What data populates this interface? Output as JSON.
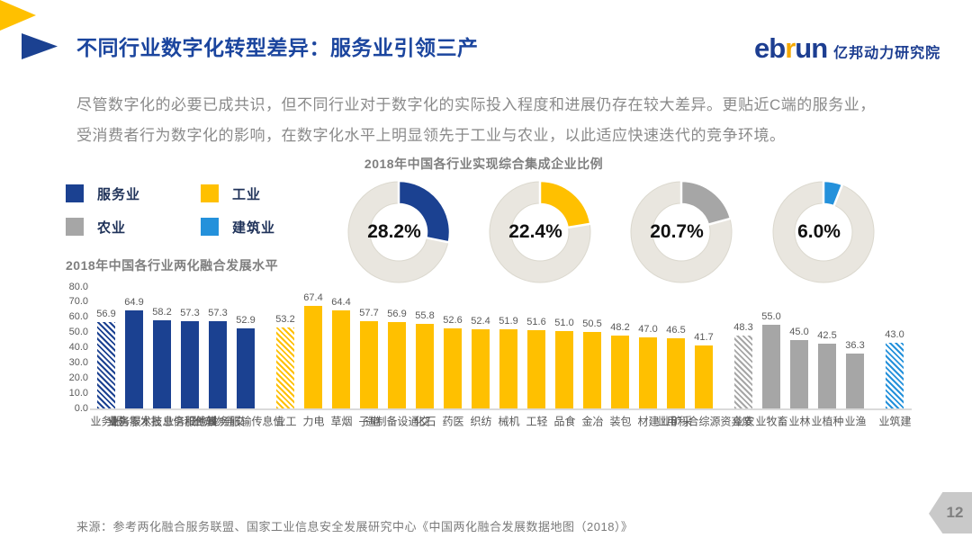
{
  "header": {
    "title": "不同行业数字化转型差异：服务业引领三产",
    "logo": {
      "eb": "eb",
      "r": "r",
      "un": "un",
      "cn": "亿邦动力研究院"
    }
  },
  "intro": {
    "line1": "尽管数字化的必要已成共识，但不同行业对于数字化的实际投入程度和进展仍存在较大差异。更贴近C端的服务业，",
    "line2": "受消费者行为数字化的影响，在数字化水平上明显领先于工业与农业，以此适应快速迭代的竞争环境。"
  },
  "legend": {
    "items": [
      {
        "label": "服务业",
        "color": "#1B4191"
      },
      {
        "label": "工业",
        "color": "#FFC000"
      },
      {
        "label": "农业",
        "color": "#A6A6A6"
      },
      {
        "label": "建筑业",
        "color": "#2491DB"
      }
    ]
  },
  "chart_data": [
    {
      "type": "pie",
      "style": "donut",
      "title": "2018年中国各行业实现综合集成企业比例",
      "track_color": "#E9E6DF",
      "track_border": "#DBD8CE",
      "donuts": [
        {
          "category": "服务业",
          "value": 28.2,
          "color": "#1B4191"
        },
        {
          "category": "工业",
          "value": 22.4,
          "color": "#FFC000"
        },
        {
          "category": "农业",
          "value": 20.7,
          "color": "#A6A6A6"
        },
        {
          "category": "建筑业",
          "value": 6.0,
          "color": "#2491DB"
        }
      ]
    },
    {
      "type": "bar",
      "title": "2018年中国各行业两化融合发展水平",
      "ylim": [
        0,
        80
      ],
      "ytick_step": 10,
      "grid": false,
      "groups": [
        {
          "category": "服务业",
          "color": "#1B4191",
          "bars": [
            {
              "label": "服务业",
              "value": 56.9,
              "hatched": true
            },
            {
              "label": "批发零售业",
              "value": 64.9
            },
            {
              "label": "软件和信息技术服务业",
              "value": 58.2
            },
            {
              "label": "其他服务业",
              "value": 57.3
            },
            {
              "label": "交通物流业",
              "value": 57.3
            },
            {
              "label": "信息传输服务业",
              "value": 52.9
            }
          ]
        },
        {
          "category": "工业",
          "color": "#FFC000",
          "bars": [
            {
              "label": "工业",
              "value": 53.2,
              "hatched": true
            },
            {
              "label": "电力",
              "value": 67.4
            },
            {
              "label": "烟草",
              "value": 64.4
            },
            {
              "label": "电子",
              "value": 57.7
            },
            {
              "label": "交通设备制造",
              "value": 56.9
            },
            {
              "label": "石化",
              "value": 55.8
            },
            {
              "label": "医药",
              "value": 52.6
            },
            {
              "label": "纺织",
              "value": 52.4
            },
            {
              "label": "机械",
              "value": 51.9
            },
            {
              "label": "轻工",
              "value": 51.6
            },
            {
              "label": "食品",
              "value": 51.0
            },
            {
              "label": "冶金",
              "value": 50.5
            },
            {
              "label": "包装",
              "value": 48.2
            },
            {
              "label": "建材",
              "value": 47.0
            },
            {
              "label": "采矿业",
              "value": 46.5
            },
            {
              "label": "废弃资源综合利用业",
              "value": 41.7
            }
          ]
        },
        {
          "category": "农业",
          "color": "#A6A6A6",
          "bars": [
            {
              "label": "农业",
              "value": 48.3,
              "hatched": true
            },
            {
              "label": "畜牧业",
              "value": 55.0
            },
            {
              "label": "林业",
              "value": 45.0
            },
            {
              "label": "种植业",
              "value": 42.5
            },
            {
              "label": "渔业",
              "value": 36.3
            }
          ]
        },
        {
          "category": "建筑业",
          "color": "#2491DB",
          "bars": [
            {
              "label": "建筑业",
              "value": 43.0,
              "hatched": true
            }
          ]
        }
      ]
    }
  ],
  "footer": {
    "source": "来源：参考两化融合服务联盟、国家工业信息安全发展研究中心《中国两化融合发展数据地图（2018）》",
    "page": "12"
  }
}
